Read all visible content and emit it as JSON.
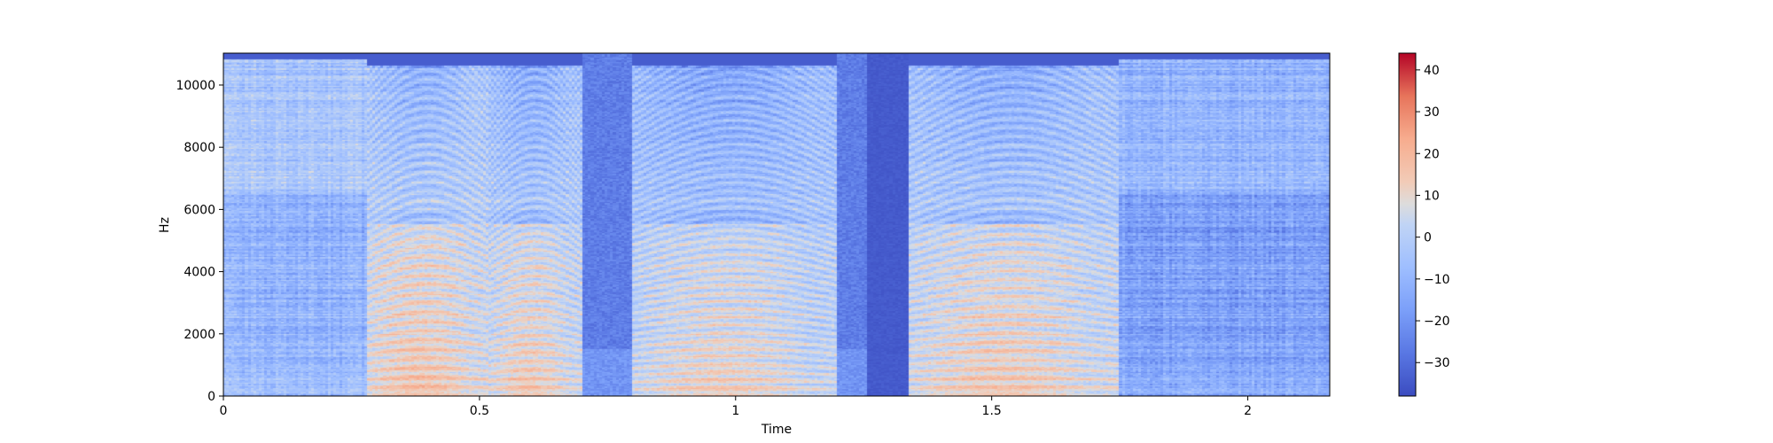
{
  "chart_data": {
    "type": "heatmap",
    "title": "",
    "xlabel": "Time",
    "ylabel": "Hz",
    "xlim": [
      0,
      2.16
    ],
    "ylim": [
      0,
      11025
    ],
    "x_ticks": [
      {
        "value": 0,
        "label": "0"
      },
      {
        "value": 0.5,
        "label": "0.5"
      },
      {
        "value": 1,
        "label": "1"
      },
      {
        "value": 1.5,
        "label": "1.5"
      },
      {
        "value": 2,
        "label": "2"
      }
    ],
    "y_ticks": [
      {
        "value": 0,
        "label": "0"
      },
      {
        "value": 2000,
        "label": "2000"
      },
      {
        "value": 4000,
        "label": "4000"
      },
      {
        "value": 6000,
        "label": "6000"
      },
      {
        "value": 8000,
        "label": "8000"
      },
      {
        "value": 10000,
        "label": "10000"
      }
    ],
    "colorbar": {
      "range": [
        -38,
        44
      ],
      "colormap": "coolwarm",
      "ticks": [
        {
          "value": 40,
          "label": "40"
        },
        {
          "value": 30,
          "label": "30"
        },
        {
          "value": 20,
          "label": "20"
        },
        {
          "value": 10,
          "label": "10"
        },
        {
          "value": 0,
          "label": "0"
        },
        {
          "value": -10,
          "label": "−10"
        },
        {
          "value": -20,
          "label": "−20"
        },
        {
          "value": -30,
          "label": "−30"
        }
      ]
    },
    "segments": [
      {
        "start": 0.0,
        "end": 0.28,
        "kind": "noise",
        "level": -8
      },
      {
        "start": 0.28,
        "end": 0.52,
        "kind": "voiced",
        "f0": 260,
        "level": 8
      },
      {
        "start": 0.52,
        "end": 0.7,
        "kind": "voiced",
        "f0": 240,
        "level": 6
      },
      {
        "start": 0.7,
        "end": 0.8,
        "kind": "quiet",
        "level": -28
      },
      {
        "start": 0.8,
        "end": 1.2,
        "kind": "voiced",
        "f0": 220,
        "level": 4
      },
      {
        "start": 1.26,
        "end": 1.34,
        "kind": "silence",
        "level": -36
      },
      {
        "start": 1.34,
        "end": 1.75,
        "kind": "voiced",
        "f0": 250,
        "level": 6
      },
      {
        "start": 1.75,
        "end": 2.16,
        "kind": "noise",
        "level": -14
      }
    ]
  },
  "colors": {
    "low": "#3b4cc0",
    "mid": "#dddddd",
    "high": "#b40426"
  }
}
